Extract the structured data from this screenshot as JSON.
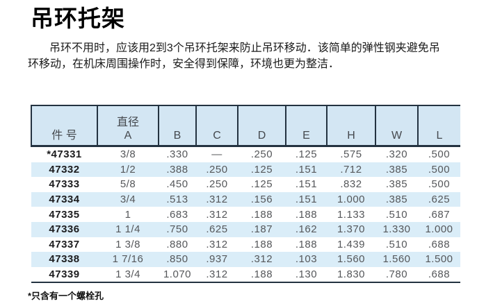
{
  "page": {
    "title": "吊环托架",
    "paragraph_lines": [
      "吊环不用时，应该用2到3个吊环托架来防止吊环移动．该简单的弹性钢夹避免吊",
      "环移动，在机床周围操作时，安全得到保障，环境也更为整洁．"
    ],
    "footnote": "*只含有一个螺栓孔"
  },
  "table": {
    "columns": [
      {
        "label": "件 号"
      },
      {
        "label_top": "直径",
        "label": "A"
      },
      {
        "label": "B"
      },
      {
        "label": "C"
      },
      {
        "label": "D"
      },
      {
        "label": "E"
      },
      {
        "label": "H"
      },
      {
        "label": "W"
      },
      {
        "label": "L"
      }
    ],
    "row_keys": [
      "part",
      "a",
      "b",
      "c",
      "d",
      "e",
      "h",
      "w",
      "l"
    ],
    "rows": [
      {
        "part": "*47331",
        "a": "3/8",
        "b": ".330",
        "c": "—",
        "d": ".250",
        "e": ".125",
        "h": ".575",
        "w": ".320",
        "l": ".500"
      },
      {
        "part": "47332",
        "a": "1/2",
        "b": ".388",
        "c": ".250",
        "d": ".125",
        "e": ".151",
        "h": ".712",
        "w": ".385",
        "l": ".500"
      },
      {
        "part": "47333",
        "a": "5/8",
        "b": ".450",
        "c": ".250",
        "d": ".125",
        "e": ".151",
        "h": ".832",
        "w": ".385",
        "l": ".500"
      },
      {
        "part": "47334",
        "a": "3/4",
        "b": ".513",
        "c": ".312",
        "d": ".156",
        "e": ".151",
        "h": "1.000",
        "w": ".385",
        "l": ".625"
      },
      {
        "part": "47335",
        "a": "1",
        "b": ".683",
        "c": ".312",
        "d": ".188",
        "e": ".188",
        "h": "1.133",
        "w": ".510",
        "l": ".687"
      },
      {
        "part": "47336",
        "a": "1 1/4",
        "b": ".750",
        "c": ".625",
        "d": ".187",
        "e": ".162",
        "h": "1.370",
        "w": "1.330",
        "l": "1.000"
      },
      {
        "part": "47337",
        "a": "1 3/8",
        "b": ".880",
        "c": ".312",
        "d": ".188",
        "e": ".188",
        "h": "1.439",
        "w": ".510",
        "l": ".688"
      },
      {
        "part": "47338",
        "a": "1 7/16",
        "b": ".850",
        "c": ".937",
        "d": ".312",
        "e": ".103",
        "h": "1.560",
        "w": "1.560",
        "l": "1.500"
      },
      {
        "part": "47339",
        "a": "1 3/4",
        "b": "1.070",
        "c": ".312",
        "d": ".188",
        "e": ".130",
        "h": "1.830",
        "w": ".780",
        "l": ".688"
      }
    ]
  },
  "colors": {
    "header_bg": "#d3e6f3",
    "stripe_bg": "#daedf8",
    "border": "#233240",
    "header_text": "#44484d",
    "part_text": "#1c1c1e",
    "value_text": "#55575a"
  }
}
